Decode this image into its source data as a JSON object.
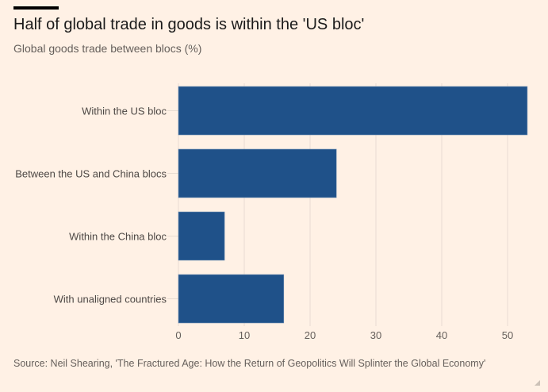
{
  "header": {
    "title": "Half of global trade in goods is within the 'US bloc'",
    "subtitle": "Global goods trade between blocs (%)"
  },
  "footer": {
    "source": "Source: Neil Shearing, 'The Fractured Age: How the Return of Geopolitics Will Splinter the Global Economy'"
  },
  "colors": {
    "bar": "#1f5189",
    "grid": "#e8dcd2",
    "background": "#fff1e5"
  },
  "chart_data": {
    "type": "bar",
    "orientation": "horizontal",
    "title": "Half of global trade in goods is within the 'US bloc'",
    "subtitle": "Global goods trade between blocs (%)",
    "xlabel": "",
    "ylabel": "",
    "categories": [
      "Within the US bloc",
      "Between the US and China blocs",
      "Within the China bloc",
      "With unaligned countries"
    ],
    "values": [
      53,
      24,
      7,
      16
    ],
    "xlim": [
      0,
      53
    ],
    "xticks": [
      0,
      10,
      20,
      30,
      40,
      50
    ],
    "xtick_labels": [
      "0",
      "10",
      "20",
      "30",
      "40",
      "50"
    ],
    "grid": true,
    "legend": "none"
  }
}
